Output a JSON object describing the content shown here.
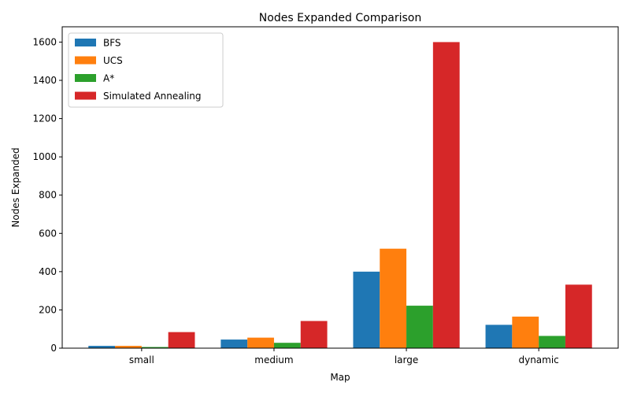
{
  "chart_data": {
    "type": "bar",
    "title": "Nodes Expanded Comparison",
    "xlabel": "Map",
    "ylabel": "Nodes Expanded",
    "categories": [
      "small",
      "medium",
      "large",
      "dynamic"
    ],
    "ylim": [
      0,
      1680
    ],
    "yticks": [
      0,
      200,
      400,
      600,
      800,
      1000,
      1200,
      1400,
      1600
    ],
    "grid": false,
    "legend_position": "top-left",
    "series": [
      {
        "name": "BFS",
        "color": "#1f77b4",
        "values": [
          12,
          45,
          400,
          122
        ]
      },
      {
        "name": "UCS",
        "color": "#ff7f0e",
        "values": [
          12,
          55,
          520,
          165
        ]
      },
      {
        "name": "A*",
        "color": "#2ca02c",
        "values": [
          6,
          28,
          222,
          64
        ]
      },
      {
        "name": "Simulated Annealing",
        "color": "#d62728",
        "values": [
          84,
          142,
          1600,
          332
        ]
      }
    ]
  }
}
